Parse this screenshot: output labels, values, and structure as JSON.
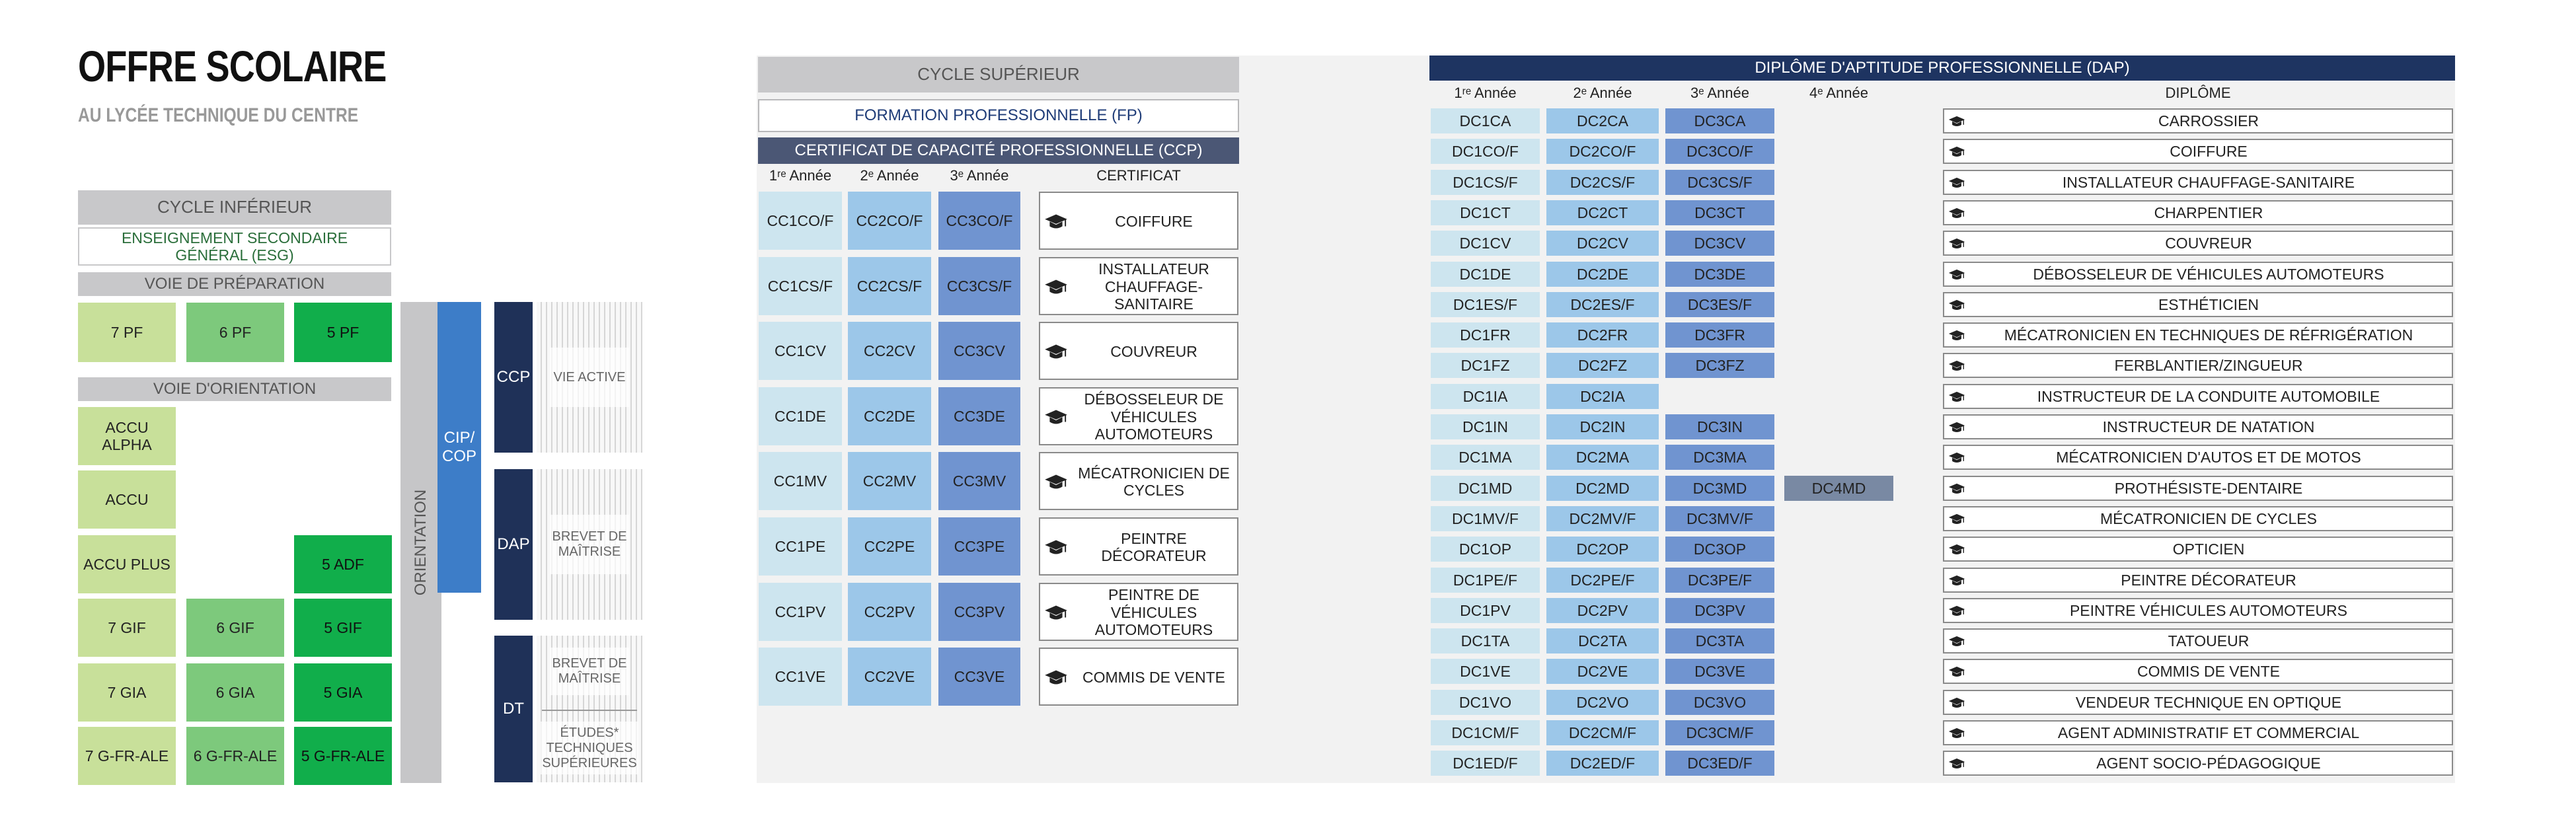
{
  "title": "OFFRE SCOLAIRE",
  "subtitle": "AU LYCÉE TECHNIQUE DU CENTRE",
  "inferior": {
    "cycle_label": "CYCLE INFÉRIEUR",
    "esg_label": "ENSEIGNEMENT SECONDAIRE GÉNÉRAL (ESG)",
    "preparation_label": "VOIE DE PRÉPARATION",
    "preparation_cells": [
      "7 PF",
      "6 PF",
      "5 PF"
    ],
    "orientation_label": "VOIE D'ORIENTATION",
    "orientation_rows": [
      [
        "ACCU ALPHA",
        "",
        ""
      ],
      [
        "ACCU",
        "",
        ""
      ],
      [
        "ACCU PLUS",
        "",
        "5 ADF"
      ],
      [
        "7 GIF",
        "6 GIF",
        "5 GIF"
      ],
      [
        "7 GIA",
        "6 GIA",
        "5 GIA"
      ],
      [
        "7 G-FR-ALE",
        "6 G-FR-ALE",
        "5 G-FR-ALE"
      ]
    ],
    "orientation_vertical": "ORIENTATION",
    "cip_cop": "CIP/ COP",
    "paths": [
      {
        "code": "CCP",
        "outcome": "VIE ACTIVE"
      },
      {
        "code": "DAP",
        "outcome": "BREVET DE MAÎTRISE"
      },
      {
        "code": "DT",
        "outcome": "BREVET DE MAÎTRISE",
        "outcome2": "ÉTUDES* TECHNIQUES SUPÉRIEURES"
      }
    ]
  },
  "superior": {
    "cycle_label": "CYCLE SUPÉRIEUR",
    "fp_label": "FORMATION PROFESSIONNELLE (FP)",
    "ccp": {
      "header": "CERTIFICAT DE CAPACITÉ PROFESSIONNELLE (CCP)",
      "col_headers": [
        "1ʳᵉ Année",
        "2ᵉ Année",
        "3ᵉ  Année",
        "CERTIFICAT"
      ],
      "rows": [
        {
          "y1": "CC1CO/F",
          "y2": "CC2CO/F",
          "y3": "CC3CO/F",
          "cert": "COIFFURE"
        },
        {
          "y1": "CC1CS/F",
          "y2": "CC2CS/F",
          "y3": "CC3CS/F",
          "cert": "INSTALLATEUR CHAUFFAGE-SANITAIRE"
        },
        {
          "y1": "CC1CV",
          "y2": "CC2CV",
          "y3": "CC3CV",
          "cert": "COUVREUR"
        },
        {
          "y1": "CC1DE",
          "y2": "CC2DE",
          "y3": "CC3DE",
          "cert": "DÉBOSSELEUR DE VÉHICULES AUTOMOTEURS"
        },
        {
          "y1": "CC1MV",
          "y2": "CC2MV",
          "y3": "CC3MV",
          "cert": "MÉCATRONICIEN DE CYCLES"
        },
        {
          "y1": "CC1PE",
          "y2": "CC2PE",
          "y3": "CC3PE",
          "cert": "PEINTRE DÉCORATEUR"
        },
        {
          "y1": "CC1PV",
          "y2": "CC2PV",
          "y3": "CC3PV",
          "cert": "PEINTRE DE VÉHICULES AUTOMOTEURS"
        },
        {
          "y1": "CC1VE",
          "y2": "CC2VE",
          "y3": "CC3VE",
          "cert": "COMMIS DE VENTE"
        }
      ]
    },
    "dap": {
      "header": "DIPLÔME D'APTITUDE PROFESSIONNELLE (DAP)",
      "col_headers": [
        "1ʳᵉ Année",
        "2ᵉ Année",
        "3ᵉ  Année",
        "4ᵉ  Année",
        "DIPLÔME"
      ],
      "rows": [
        {
          "y1": "DC1CA",
          "y2": "DC2CA",
          "y3": "DC3CA",
          "y4": "",
          "dip": "CARROSSIER"
        },
        {
          "y1": "DC1CO/F",
          "y2": "DC2CO/F",
          "y3": "DC3CO/F",
          "y4": "",
          "dip": "COIFFURE"
        },
        {
          "y1": "DC1CS/F",
          "y2": "DC2CS/F",
          "y3": "DC3CS/F",
          "y4": "",
          "dip": "INSTALLATEUR CHAUFFAGE-SANITAIRE"
        },
        {
          "y1": "DC1CT",
          "y2": "DC2CT",
          "y3": "DC3CT",
          "y4": "",
          "dip": "CHARPENTIER"
        },
        {
          "y1": "DC1CV",
          "y2": "DC2CV",
          "y3": "DC3CV",
          "y4": "",
          "dip": "COUVREUR"
        },
        {
          "y1": "DC1DE",
          "y2": "DC2DE",
          "y3": "DC3DE",
          "y4": "",
          "dip": "DÉBOSSELEUR DE VÉHICULES AUTOMOTEURS"
        },
        {
          "y1": "DC1ES/F",
          "y2": "DC2ES/F",
          "y3": "DC3ES/F",
          "y4": "",
          "dip": "ESTHÉTICIEN"
        },
        {
          "y1": "DC1FR",
          "y2": "DC2FR",
          "y3": "DC3FR",
          "y4": "",
          "dip": "MÉCATRONICIEN EN TECHNIQUES DE RÉFRIGÉRATION"
        },
        {
          "y1": "DC1FZ",
          "y2": "DC2FZ",
          "y3": "DC3FZ",
          "y4": "",
          "dip": "FERBLANTIER/ZINGUEUR"
        },
        {
          "y1": "DC1IA",
          "y2": "DC2IA",
          "y3": "",
          "y4": "",
          "dip": "INSTRUCTEUR DE LA CONDUITE AUTOMOBILE"
        },
        {
          "y1": "DC1IN",
          "y2": "DC2IN",
          "y3": "DC3IN",
          "y4": "",
          "dip": "INSTRUCTEUR DE NATATION"
        },
        {
          "y1": "DC1MA",
          "y2": "DC2MA",
          "y3": "DC3MA",
          "y4": "",
          "dip": "MÉCATRONICIEN D'AUTOS ET DE MOTOS"
        },
        {
          "y1": "DC1MD",
          "y2": "DC2MD",
          "y3": "DC3MD",
          "y4": "DC4MD",
          "dip": "PROTHÉSISTE-DENTAIRE"
        },
        {
          "y1": "DC1MV/F",
          "y2": "DC2MV/F",
          "y3": "DC3MV/F",
          "y4": "",
          "dip": "MÉCATRONICIEN DE CYCLES"
        },
        {
          "y1": "DC1OP",
          "y2": "DC2OP",
          "y3": "DC3OP",
          "y4": "",
          "dip": "OPTICIEN"
        },
        {
          "y1": "DC1PE/F",
          "y2": "DC2PE/F",
          "y3": "DC3PE/F",
          "y4": "",
          "dip": "PEINTRE DÉCORATEUR"
        },
        {
          "y1": "DC1PV",
          "y2": "DC2PV",
          "y3": "DC3PV",
          "y4": "",
          "dip": "PEINTRE VÉHICULES AUTOMOTEURS"
        },
        {
          "y1": "DC1TA",
          "y2": "DC2TA",
          "y3": "DC3TA",
          "y4": "",
          "dip": "TATOUEUR"
        },
        {
          "y1": "DC1VE",
          "y2": "DC2VE",
          "y3": "DC3VE",
          "y4": "",
          "dip": "COMMIS DE VENTE"
        },
        {
          "y1": "DC1VO",
          "y2": "DC2VO",
          "y3": "DC3VO",
          "y4": "",
          "dip": "VENDEUR TECHNIQUE EN OPTIQUE"
        },
        {
          "y1": "DC1CM/F",
          "y2": "DC2CM/F",
          "y3": "DC3CM/F",
          "y4": "",
          "dip": "AGENT ADMINISTRATIF ET COMMERCIAL"
        },
        {
          "y1": "DC1ED/F",
          "y2": "DC2ED/F",
          "y3": "DC3ED/F",
          "y4": "",
          "dip": "AGENT SOCIO-PÉDAGOGIQUE"
        }
      ]
    },
    "icons": {
      "certificate": "graduation-cap-icon"
    }
  },
  "colors": {
    "green_1": "#c8e09a",
    "green_2": "#7dc97c",
    "green_3": "#11ae4b",
    "blue_1": "#cde5ef",
    "blue_2": "#9cc7e9",
    "blue_3": "#7094d0",
    "blue_4": "#7989a3",
    "navy": "#1f3158",
    "cip_blue": "#3d7dc8",
    "gray": "#c8c8ca"
  }
}
